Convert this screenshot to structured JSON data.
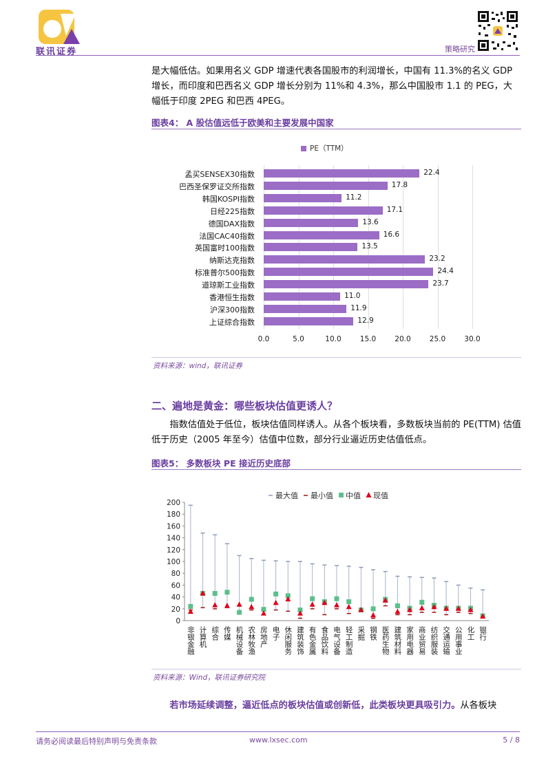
{
  "header": {
    "logo_text": "联讯证券",
    "tag": "策略研究"
  },
  "intro_paragraph": "是大幅低估。如果用名义 GDP 增速代表各国股市的利润增长，中国有 11.3%的名义 GDP 增长，而印度和巴西名义 GDP 增长分别为 11%和 4.3%，那么中国股市 1.1 的 PEG，大幅低于印度 2PEG 和巴西 4PEG。",
  "figure4": {
    "title": "图表4：  A 股估值远低于欧美和主要发展中国家",
    "source": "资料来源：wind，联讯证券"
  },
  "section2": {
    "title": "二、遍地是黄金：哪些板块估值更诱人？",
    "paragraph": "指数估值处于低位，板块估值同样诱人。从各个板块看，多数板块当前的 PE(TTM) 估值低于历史（2005 年至今）估值中位数，部分行业逼近历史估值低点。"
  },
  "figure5": {
    "title": "图表5：  多数板块 PE 接近历史底部",
    "source": "资料来源：Wind，联讯证券研究院"
  },
  "closing": {
    "bold": "若市场延续调整，逼近低点的板块估值或创新低，此类板块更具吸引力。",
    "normal": "从各板块"
  },
  "footer": {
    "left": "请务必阅读最后特别声明与免责条款",
    "mid": "www.lxsec.com",
    "right": "5 / 8"
  },
  "colors": {
    "accent": "#6a3ea0",
    "bar": "#9b6dc6",
    "median": "#5cbf8a",
    "current": "#e0001a"
  },
  "chart_data": [
    {
      "type": "bar",
      "orientation": "horizontal",
      "legend": [
        "PE（TTM）"
      ],
      "categories": [
        "孟买SENSEX30指数",
        "巴西圣保罗证交所指数",
        "韩国KOSPI指数",
        "日经225指数",
        "德国DAX指数",
        "法国CAC40指数",
        "英国富时100指数",
        "纳斯达克指数",
        "标准普尔500指数",
        "道琼斯工业指数",
        "香港恒生指数",
        "沪深300指数",
        "上证综合指数"
      ],
      "values": [
        22.4,
        17.8,
        11.2,
        17.1,
        13.6,
        16.6,
        13.5,
        23.2,
        24.4,
        23.7,
        11.0,
        11.9,
        12.9
      ],
      "value_labels": [
        "22.4",
        "17.8",
        "11.2",
        "17.1",
        "13.6",
        "16.6",
        "13.5",
        "23.2",
        "24.4",
        "23.7",
        "11.0",
        "11.9",
        "12.9"
      ],
      "xticks": [
        "0.0",
        "5.0",
        "10.0",
        "15.0",
        "20.0",
        "25.0",
        "30.0"
      ],
      "xlim": [
        0,
        30
      ],
      "grid": true
    },
    {
      "type": "scatter",
      "legend": [
        "最大值",
        "最小值",
        "中值",
        "现值"
      ],
      "categories": [
        "非银金融",
        "计算机",
        "综合",
        "传媒",
        "机械设备",
        "农林牧渔",
        "房地产",
        "电子",
        "休闲服务",
        "建筑装饰",
        "有色金属",
        "食品饮料",
        "电气设备",
        "轻工制造",
        "采掘",
        "钢铁",
        "医药生物",
        "建筑材料",
        "家用电器",
        "商业贸易",
        "纺织服装",
        "交通运输",
        "公用事业",
        "化工",
        "银行"
      ],
      "max": [
        195,
        148,
        145,
        130,
        110,
        105,
        102,
        101,
        100,
        100,
        96,
        94,
        93,
        92,
        90,
        86,
        83,
        75,
        74,
        73,
        72,
        66,
        60,
        55,
        52
      ],
      "min": [
        18,
        22,
        20,
        22,
        12,
        18,
        10,
        18,
        16,
        4,
        20,
        10,
        20,
        12,
        16,
        4,
        25,
        10,
        10,
        14,
        14,
        10,
        14,
        12,
        5
      ],
      "median": [
        24,
        46,
        46,
        48,
        14,
        36,
        19,
        45,
        42,
        18,
        37,
        32,
        37,
        32,
        18,
        20,
        36,
        25,
        21,
        31,
        26,
        21,
        21,
        21,
        8
      ],
      "current": [
        15,
        46,
        26,
        25,
        27,
        23,
        12,
        30,
        36,
        12,
        27,
        30,
        26,
        23,
        18,
        9,
        34,
        15,
        18,
        21,
        23,
        20,
        20,
        18,
        7
      ],
      "yticks": [
        "0",
        "20",
        "40",
        "60",
        "80",
        "100",
        "120",
        "140",
        "160",
        "180",
        "200"
      ],
      "ylim": [
        0,
        200
      ]
    }
  ]
}
